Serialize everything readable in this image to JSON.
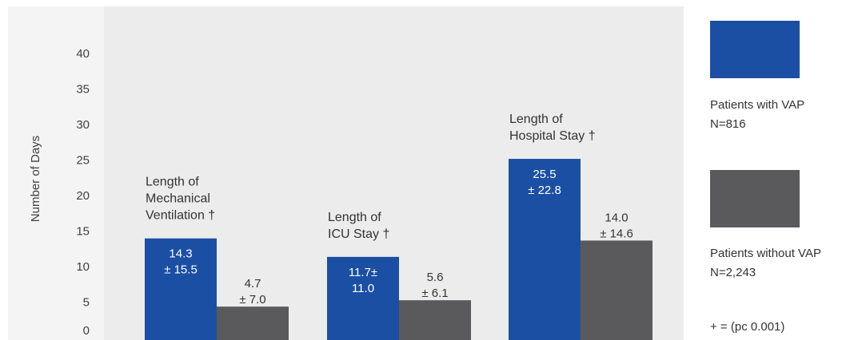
{
  "chart_data": {
    "type": "bar",
    "ylabel": "Number of Days",
    "ylim": [
      0,
      42
    ],
    "yticks": [
      0,
      5,
      10,
      15,
      20,
      25,
      30,
      35,
      40
    ],
    "grid": false,
    "legend_position": "right",
    "categories": [
      {
        "label_lines": [
          "Length of",
          "Mechanical",
          "Ventilation †"
        ]
      },
      {
        "label_lines": [
          "Length of",
          "ICU Stay †"
        ]
      },
      {
        "label_lines": [
          "Length of",
          "Hospital Stay †"
        ]
      }
    ],
    "series": [
      {
        "name": "Patients with VAP",
        "color": "#1b4fa3",
        "values": [
          14.3,
          11.7,
          25.5
        ],
        "value_labels": [
          [
            "14.3",
            "± 15.5"
          ],
          [
            "11.7±",
            "11.0"
          ],
          [
            "25.5",
            "± 22.8"
          ]
        ]
      },
      {
        "name": "Patients without VAP",
        "color": "#5a5a5c",
        "values": [
          4.7,
          5.6,
          14.0
        ],
        "value_labels": [
          [
            "4.7",
            "± 7.0"
          ],
          [
            "5.6",
            "± 6.1"
          ],
          [
            "14.0",
            "± 14.6"
          ]
        ]
      }
    ]
  },
  "legend": {
    "items": [
      {
        "label": "Patients with VAP",
        "sub": "N=816",
        "color": "#1b4fa3"
      },
      {
        "label": "Patients without VAP",
        "sub": "N=2,243",
        "color": "#5a5a5c"
      }
    ],
    "footnote": "+ = (pc 0.001)"
  },
  "colors": {
    "plot_background": "#ececec"
  }
}
